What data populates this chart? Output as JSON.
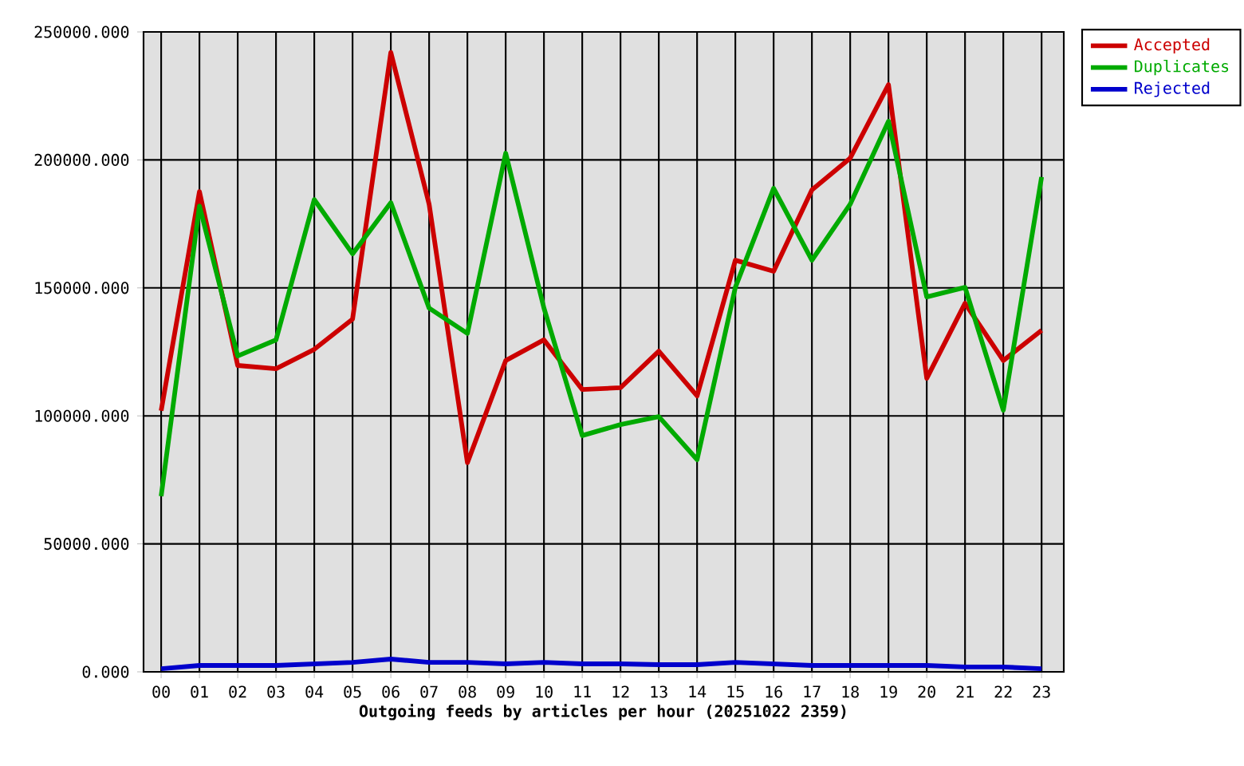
{
  "chart_data": {
    "type": "line",
    "xlabel": "Outgoing feeds by articles per hour (20251022 2359)",
    "categories": [
      "00",
      "01",
      "02",
      "03",
      "04",
      "05",
      "06",
      "07",
      "08",
      "09",
      "10",
      "11",
      "12",
      "13",
      "14",
      "15",
      "16",
      "17",
      "18",
      "19",
      "20",
      "21",
      "22",
      "23"
    ],
    "series": [
      {
        "name": "Accepted",
        "color": "#cc0000",
        "values": [
          102000,
          187600,
          119700,
          118400,
          126000,
          137800,
          242000,
          182700,
          81700,
          121600,
          129700,
          110300,
          111000,
          125300,
          107800,
          160800,
          156500,
          188300,
          200700,
          229400,
          114700,
          144000,
          121600,
          133400
        ]
      },
      {
        "name": "Duplicates",
        "color": "#00aa00",
        "values": [
          68600,
          182000,
          123400,
          129700,
          184500,
          163300,
          183300,
          142100,
          132200,
          202600,
          142100,
          92300,
          96600,
          99700,
          82900,
          150200,
          188900,
          160800,
          182700,
          215100,
          146500,
          150200,
          102200,
          193300
        ]
      },
      {
        "name": "Rejected",
        "color": "#0000cc",
        "values": [
          1200,
          2500,
          2500,
          2500,
          3100,
          3700,
          5000,
          3700,
          3700,
          3100,
          3700,
          3100,
          3100,
          2800,
          2800,
          3700,
          3100,
          2500,
          2500,
          2500,
          2500,
          1900,
          1900,
          1200
        ]
      }
    ],
    "ylim": [
      0,
      250000
    ],
    "yticks": [
      {
        "value": 0,
        "label": "0.000"
      },
      {
        "value": 50000,
        "label": "50000.000"
      },
      {
        "value": 100000,
        "label": "100000.000"
      },
      {
        "value": 150000,
        "label": "150000.000"
      },
      {
        "value": 200000,
        "label": "200000.000"
      },
      {
        "value": 250000,
        "label": "250000.000"
      }
    ],
    "grid": true,
    "legend": "top right",
    "line_style": "solid"
  }
}
